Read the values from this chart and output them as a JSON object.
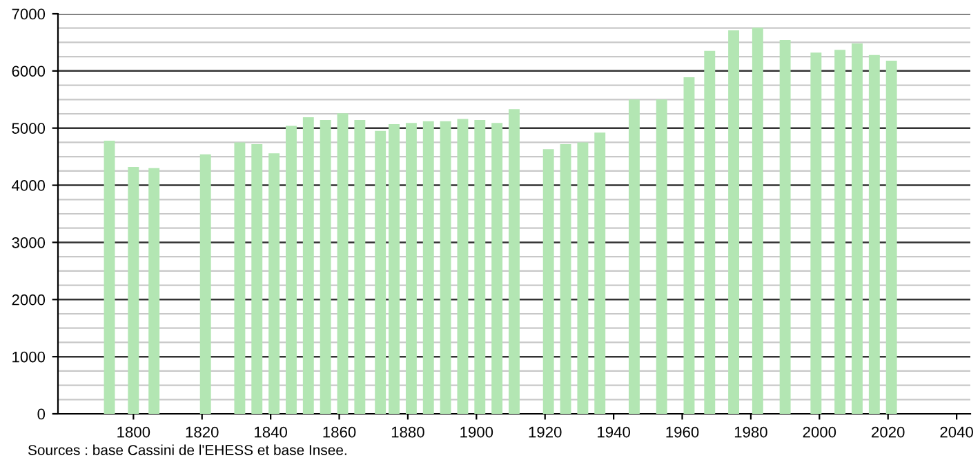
{
  "chart_data": {
    "type": "bar",
    "x": [
      1793,
      1800,
      1806,
      1821,
      1831,
      1836,
      1841,
      1846,
      1851,
      1856,
      1861,
      1866,
      1872,
      1876,
      1881,
      1886,
      1891,
      1896,
      1901,
      1906,
      1911,
      1921,
      1926,
      1931,
      1936,
      1946,
      1954,
      1962,
      1968,
      1975,
      1982,
      1990,
      1999,
      2006,
      2011,
      2016,
      2021
    ],
    "values": [
      4780,
      4320,
      4300,
      4540,
      4750,
      4720,
      4560,
      5040,
      5190,
      5140,
      5260,
      5140,
      4950,
      5070,
      5090,
      5120,
      5120,
      5160,
      5140,
      5090,
      5330,
      4630,
      4720,
      4750,
      4920,
      5500,
      5500,
      5890,
      6350,
      6710,
      6760,
      6540,
      6320,
      6370,
      6480,
      6280,
      6180
    ],
    "color": "#b3e6b3",
    "xlim": [
      1778,
      2044
    ],
    "xticks": [
      1800,
      1820,
      1840,
      1860,
      1880,
      1900,
      1920,
      1940,
      1960,
      1980,
      2000,
      2020,
      2040
    ],
    "ylim": [
      0,
      7000
    ],
    "yticks": [
      0,
      1000,
      2000,
      3000,
      4000,
      5000,
      6000,
      7000
    ],
    "grid": "y",
    "annotations": [
      "Sources : base Cassini de l'EHESS et base Insee."
    ]
  }
}
